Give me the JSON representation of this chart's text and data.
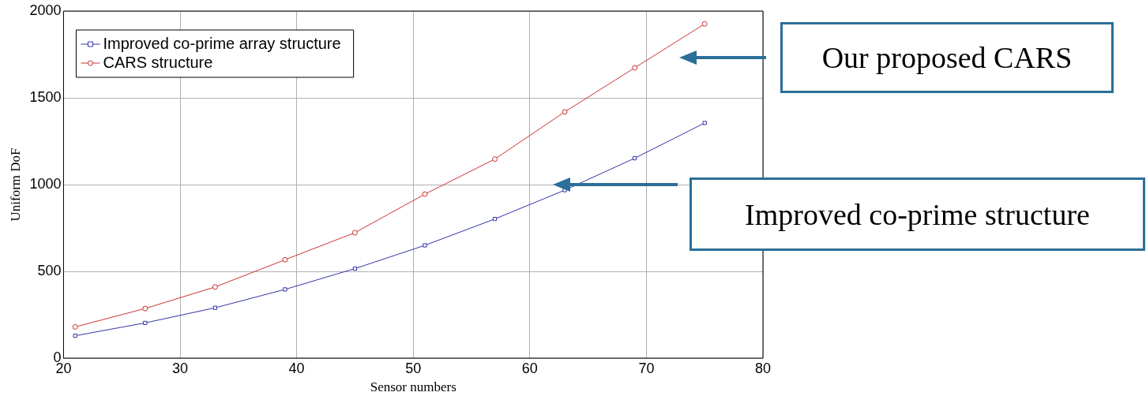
{
  "chart_data": {
    "type": "line",
    "xlabel": "Sensor numbers",
    "ylabel": "Uniform DoF",
    "x": [
      21,
      27,
      33,
      39,
      45,
      51,
      57,
      63,
      69,
      75
    ],
    "series": [
      {
        "name": "Improved co-prime array structure",
        "color": "#3333aa",
        "marker": "square",
        "values": [
          129,
          203,
          290,
          396,
          516,
          650,
          802,
          968,
          1152,
          1355
        ]
      },
      {
        "name": "CARS structure",
        "color": "#cc3333",
        "marker": "circle",
        "values": [
          180,
          286,
          410,
          567,
          723,
          945,
          1147,
          1419,
          1673,
          1926
        ]
      }
    ],
    "xlim": [
      20,
      80
    ],
    "xticks": [
      20,
      30,
      40,
      50,
      60,
      70,
      80
    ],
    "ylim": [
      0,
      2000
    ],
    "yticks": [
      0,
      500,
      1000,
      1500,
      2000
    ],
    "grid": true,
    "legend": "top left",
    "line_style": "solid",
    "annotations": [
      "Our proposed CARS",
      "Improved co-prime structure"
    ]
  }
}
